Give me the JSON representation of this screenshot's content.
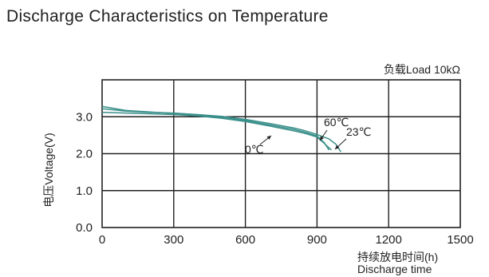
{
  "chart_data": {
    "type": "line",
    "title": "Discharge Characteristics on Temperature",
    "load_note": "负载Load 10kΩ",
    "ylabel": "电压Voltage(V)",
    "xlabel_cn": "持续放电时间(h)",
    "xlabel_en": "Discharge time",
    "xlim": [
      0,
      1500
    ],
    "ylim": [
      0,
      4.0
    ],
    "x_ticks": [
      0,
      300,
      600,
      900,
      1200,
      1500
    ],
    "x_tick_labels": [
      "0",
      "300",
      "600",
      "900",
      "1200",
      "1500"
    ],
    "y_ticks": [
      0,
      1,
      2,
      3
    ],
    "y_tick_labels": [
      "0.0",
      "1.0",
      "2.0",
      "3.0"
    ],
    "grid": true,
    "line_color": "#3a8f8a",
    "series": [
      {
        "name": "60℃",
        "x": [
          0,
          100,
          200,
          300,
          400,
          500,
          600,
          700,
          800,
          850,
          900,
          930,
          950
        ],
        "y": [
          3.28,
          3.17,
          3.13,
          3.09,
          3.05,
          2.98,
          2.9,
          2.78,
          2.66,
          2.58,
          2.48,
          2.3,
          2.1
        ]
      },
      {
        "name": "23℃",
        "x": [
          0,
          100,
          200,
          300,
          400,
          500,
          600,
          700,
          800,
          850,
          900,
          950,
          980,
          1000
        ],
        "y": [
          3.22,
          3.15,
          3.12,
          3.1,
          3.06,
          3.01,
          2.93,
          2.82,
          2.7,
          2.62,
          2.52,
          2.4,
          2.25,
          2.05
        ]
      },
      {
        "name": "0℃",
        "x": [
          0,
          100,
          200,
          300,
          400,
          500,
          600,
          700,
          800,
          850,
          900,
          930,
          960
        ],
        "y": [
          3.12,
          3.1,
          3.08,
          3.06,
          3.02,
          2.96,
          2.87,
          2.75,
          2.62,
          2.55,
          2.45,
          2.28,
          2.1
        ]
      }
    ],
    "annotations": [
      {
        "text": "60℃",
        "series": "60℃"
      },
      {
        "text": "23℃",
        "series": "23℃"
      },
      {
        "text": "0℃",
        "series": "0℃"
      }
    ]
  }
}
